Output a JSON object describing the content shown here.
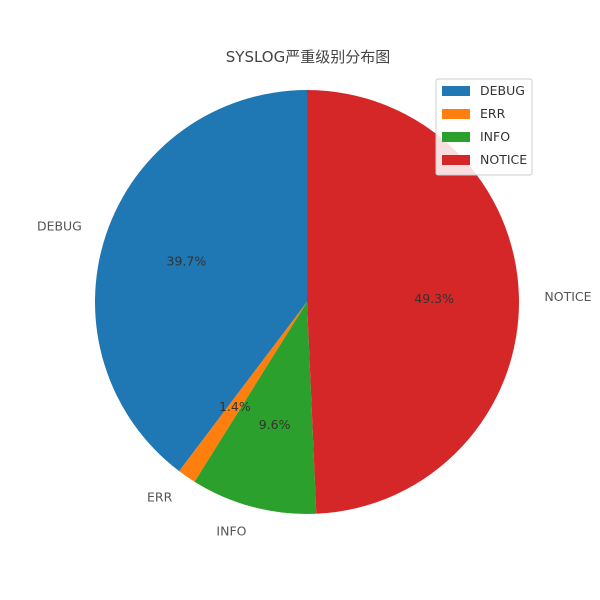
{
  "chart_data": {
    "type": "pie",
    "title": "SYSLOG严重级别分布图",
    "categories": [
      "DEBUG",
      "ERR",
      "INFO",
      "NOTICE"
    ],
    "values": [
      39.7,
      1.4,
      9.6,
      49.3
    ],
    "percent_labels": [
      "39.7%",
      "1.4%",
      "9.6%",
      "49.3%"
    ],
    "colors": [
      "#1f77b4",
      "#ff7f0e",
      "#2ca02c",
      "#d62728"
    ],
    "legend": {
      "position": "top-right",
      "entries": [
        "DEBUG",
        "ERR",
        "INFO",
        "NOTICE"
      ]
    }
  }
}
